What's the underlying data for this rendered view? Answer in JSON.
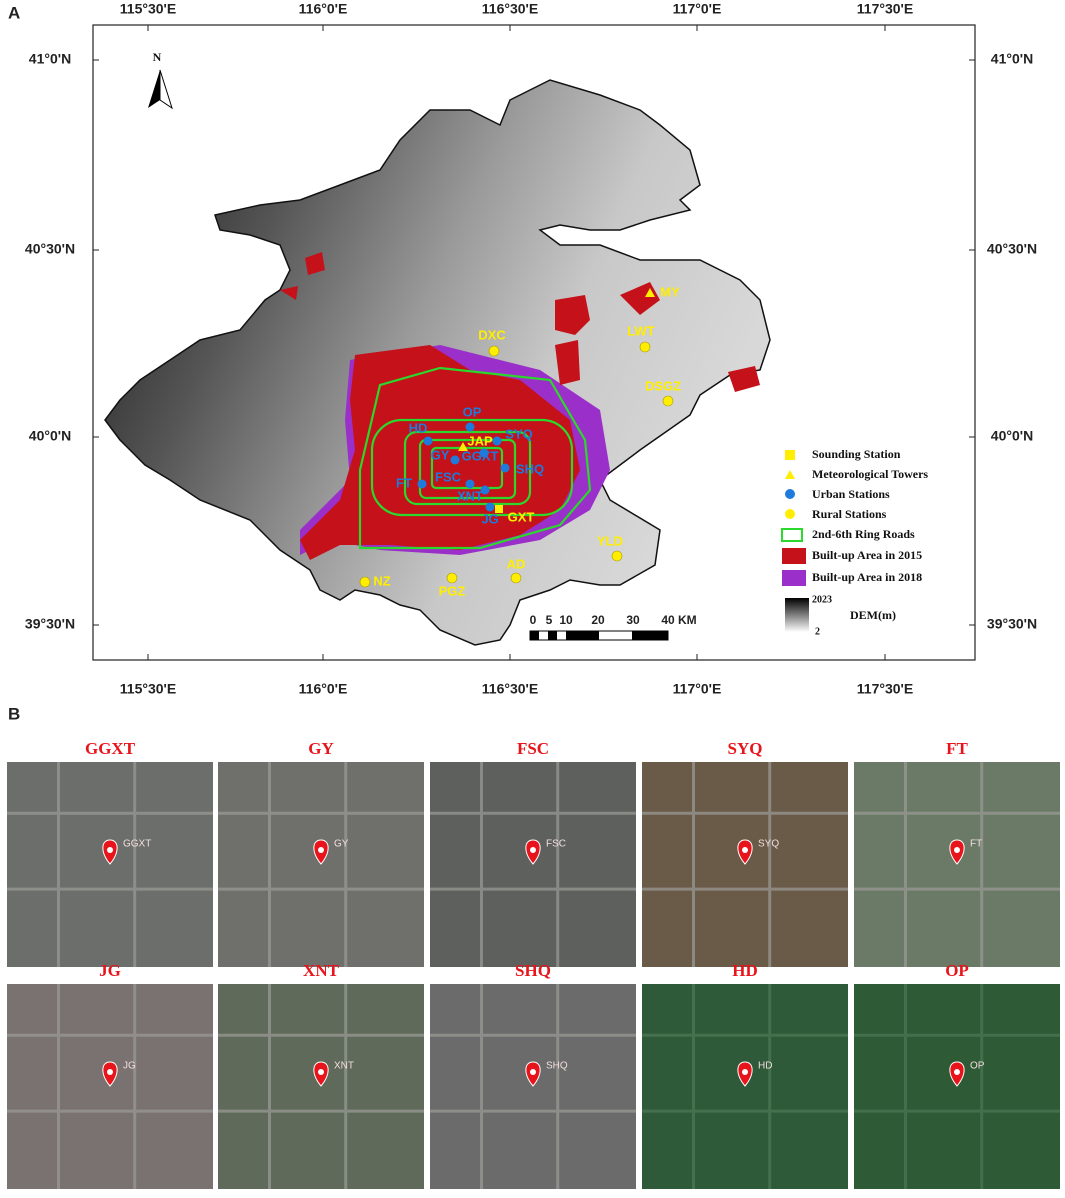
{
  "panel_a": {
    "label": "A",
    "lon_ticks": [
      "115°30'E",
      "116°0'E",
      "116°30'E",
      "117°0'E",
      "117°30'E"
    ],
    "lat_ticks": [
      "41°0'N",
      "40°30'N",
      "40°0'N",
      "39°30'N"
    ],
    "north": "N",
    "stations": [
      {
        "label": "MY",
        "kind": "tower"
      },
      {
        "label": "DXC",
        "kind": "rural"
      },
      {
        "label": "LWT",
        "kind": "rural"
      },
      {
        "label": "DSGZ",
        "kind": "rural"
      },
      {
        "label": "OP",
        "kind": "urban"
      },
      {
        "label": "HD",
        "kind": "urban"
      },
      {
        "label": "SYQ",
        "kind": "urban"
      },
      {
        "label": "JAP",
        "kind": "tower"
      },
      {
        "label": "GY",
        "kind": "urban"
      },
      {
        "label": "GGXT",
        "kind": "urban"
      },
      {
        "label": "SHQ",
        "kind": "urban"
      },
      {
        "label": "FT",
        "kind": "urban"
      },
      {
        "label": "FSC",
        "kind": "urban"
      },
      {
        "label": "XNT",
        "kind": "urban"
      },
      {
        "label": "JG",
        "kind": "urban"
      },
      {
        "label": "GXT",
        "kind": "sounding"
      },
      {
        "label": "YLD",
        "kind": "rural"
      },
      {
        "label": "AD",
        "kind": "rural"
      },
      {
        "label": "PGZ",
        "kind": "rural"
      },
      {
        "label": "NZ",
        "kind": "rural"
      }
    ],
    "legend": {
      "sounding": "Sounding Station",
      "tower": "Meteorological Towers",
      "urban": "Urban Stations",
      "rural": "Rural Stations",
      "ring": "2nd-6th Ring Roads",
      "built2015": "Built-up Area in 2015",
      "built2018": "Built-up Area in 2018",
      "dem_title": "DEM(m)",
      "dem_max": "2023",
      "dem_min": "2"
    },
    "scale_labels": [
      "0",
      "5",
      "10",
      "20",
      "30",
      "40 KM"
    ]
  },
  "panel_b": {
    "label": "B",
    "sites": [
      {
        "title": "GGXT",
        "pin": "GGXT"
      },
      {
        "title": "GY",
        "pin": "GY"
      },
      {
        "title": "FSC",
        "pin": "FSC"
      },
      {
        "title": "SYQ",
        "pin": "SYQ"
      },
      {
        "title": "FT",
        "pin": "FT"
      },
      {
        "title": "JG",
        "pin": "JG"
      },
      {
        "title": "XNT",
        "pin": "XNT"
      },
      {
        "title": "SHQ",
        "pin": "SHQ"
      },
      {
        "title": "HD",
        "pin": "HD"
      },
      {
        "title": "OP",
        "pin": "OP"
      }
    ]
  }
}
